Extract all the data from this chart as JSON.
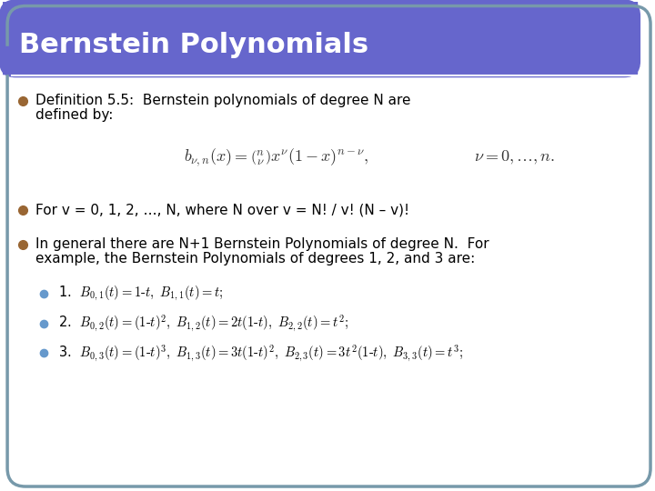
{
  "title": "Bernstein Polynomials",
  "title_bg_color": "#6666CC",
  "title_text_color": "#FFFFFF",
  "body_bg_color": "#FFFFFF",
  "border_color": "#7799AA",
  "bullet_color": "#996633",
  "sub_bullet_color": "#6699CC",
  "text_color": "#000000",
  "formula_color": "#333333",
  "bullet1_text": "Definition 5.5:  Bernstein polynomials of degree N are\ndefined by:",
  "formula": "$b_{\\nu,n}(x) = \\binom{n}{\\nu} x^{\\nu}(1-x)^{n-\\nu}, \\qquad \\nu = 0,\\ldots, n.$",
  "bullet2_text": "For v = 0, 1, 2, …, N, where N over v = N! / v! (N – v)!",
  "bullet3_text": "In general there are N+1 Bernstein Polynomials of degree N.  For\nexample, the Bernstein Polynomials of degrees 1, 2, and 3 are:",
  "sub1": "1.  $B_{0,1}(t) = 1\\text{-}t,\\ B_{1,1}(t) = t;$",
  "sub2": "2.  $B_{0,2}(t) = (1\\text{-}t)^2,\\ B_{1,2}(t) = 2t(1\\text{-}t),\\ B_{2,2}(t) = t^2;$",
  "sub3": "3.  $B_{0,3}(t) = (1\\text{-}t)^3,\\ B_{1,3}(t) = 3t(1\\text{-}t)^2,\\ B_{2,3}(t)=3t^2(1\\text{-}t),\\ B_{3,3}(t) = t^3;$"
}
